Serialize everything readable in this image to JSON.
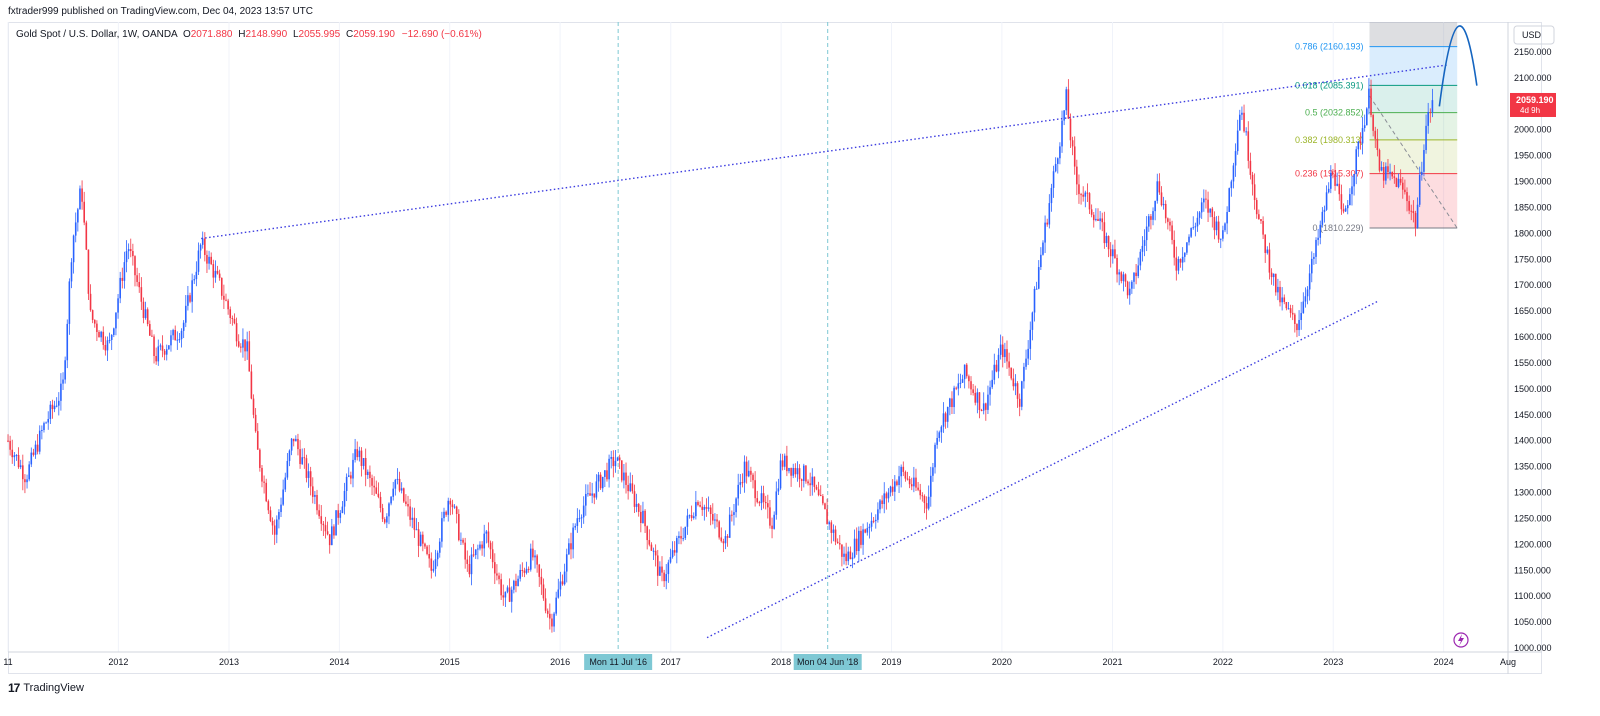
{
  "publisher": {
    "text": "fxtrader999 published on TradingView.com, Dec 04, 2023 13:57 UTC"
  },
  "legend": {
    "symbol": "Gold Spot / U.S. Dollar, 1W, OANDA",
    "open_label": "O",
    "open": "2071.880",
    "high_label": "H",
    "high": "2148.990",
    "low_label": "L",
    "low": "2055.995",
    "close_label": "C",
    "close": "2059.190",
    "change": "−12.690 (−0.61%)"
  },
  "currency": "USD",
  "price_badge": {
    "price": "2059.190",
    "countdown": "4d 9h",
    "value": 2059.19
  },
  "footer": {
    "brand": "TradingView"
  },
  "colors": {
    "up": "#2962ff",
    "down": "#f23645",
    "trendline": "#3d3de0",
    "grid": "#f0f3fa"
  },
  "chart_data": {
    "type": "candlestick",
    "x_range": [
      "2011-01",
      "2024-08"
    ],
    "y_range": [
      1000,
      2200
    ],
    "y_ticks": [
      "1000.000",
      "1050.000",
      "1100.000",
      "1150.000",
      "1200.000",
      "1250.000",
      "1300.000",
      "1350.000",
      "1400.000",
      "1450.000",
      "1500.000",
      "1550.000",
      "1600.000",
      "1650.000",
      "1700.000",
      "1750.000",
      "1800.000",
      "1850.000",
      "1900.000",
      "1950.000",
      "2000.000",
      "2050.000",
      "2100.000",
      "2150.000"
    ],
    "x_ticks": [
      {
        "label": "11",
        "date": "2011-01"
      },
      {
        "label": "2012",
        "date": "2012-01"
      },
      {
        "label": "2013",
        "date": "2013-01"
      },
      {
        "label": "2014",
        "date": "2014-01"
      },
      {
        "label": "2015",
        "date": "2015-01"
      },
      {
        "label": "2016",
        "date": "2016-01"
      },
      {
        "label": "2017",
        "date": "2017-01"
      },
      {
        "label": "2018",
        "date": "2018-01"
      },
      {
        "label": "2019",
        "date": "2019-01"
      },
      {
        "label": "2020",
        "date": "2020-01"
      },
      {
        "label": "2021",
        "date": "2021-01"
      },
      {
        "label": "2022",
        "date": "2022-01"
      },
      {
        "label": "2023",
        "date": "2023-01"
      },
      {
        "label": "2024",
        "date": "2024-01"
      },
      {
        "label": "Aug",
        "date": "2024-08"
      }
    ],
    "highlighted_dates": [
      {
        "label": "Mon 11 Jul '16",
        "date": "2016-07-11"
      },
      {
        "label": "Mon 04 Jun '18",
        "date": "2018-06-04"
      }
    ],
    "price_path": [
      [
        "2011-01",
        1400
      ],
      [
        "2011-03",
        1330
      ],
      [
        "2011-05",
        1430
      ],
      [
        "2011-07",
        1500
      ],
      [
        "2011-08",
        1780
      ],
      [
        "2011-09",
        1890
      ],
      [
        "2011-10",
        1640
      ],
      [
        "2011-12",
        1580
      ],
      [
        "2012-02",
        1780
      ],
      [
        "2012-05",
        1560
      ],
      [
        "2012-08",
        1620
      ],
      [
        "2012-10",
        1780
      ],
      [
        "2012-12",
        1700
      ],
      [
        "2013-02",
        1600
      ],
      [
        "2013-03",
        1580
      ],
      [
        "2013-04",
        1390
      ],
      [
        "2013-06",
        1220
      ],
      [
        "2013-08",
        1410
      ],
      [
        "2013-12",
        1210
      ],
      [
        "2014-03",
        1380
      ],
      [
        "2014-06",
        1250
      ],
      [
        "2014-07",
        1330
      ],
      [
        "2014-11",
        1150
      ],
      [
        "2015-01",
        1300
      ],
      [
        "2015-03",
        1150
      ],
      [
        "2015-05",
        1220
      ],
      [
        "2015-07",
        1090
      ],
      [
        "2015-10",
        1180
      ],
      [
        "2015-12",
        1050
      ],
      [
        "2016-03",
        1260
      ],
      [
        "2016-07",
        1365
      ],
      [
        "2016-10",
        1250
      ],
      [
        "2016-12",
        1130
      ],
      [
        "2017-04",
        1290
      ],
      [
        "2017-07",
        1210
      ],
      [
        "2017-09",
        1350
      ],
      [
        "2017-12",
        1240
      ],
      [
        "2018-01",
        1360
      ],
      [
        "2018-04",
        1330
      ],
      [
        "2018-08",
        1170
      ],
      [
        "2018-12",
        1280
      ],
      [
        "2019-02",
        1340
      ],
      [
        "2019-05",
        1280
      ],
      [
        "2019-06",
        1420
      ],
      [
        "2019-09",
        1530
      ],
      [
        "2019-11",
        1460
      ],
      [
        "2020-01",
        1580
      ],
      [
        "2020-03",
        1480
      ],
      [
        "2020-05",
        1730
      ],
      [
        "2020-08",
        2060
      ],
      [
        "2020-09",
        1900
      ],
      [
        "2020-11",
        1840
      ],
      [
        "2021-03",
        1680
      ],
      [
        "2021-06",
        1900
      ],
      [
        "2021-08",
        1740
      ],
      [
        "2021-11",
        1860
      ],
      [
        "2022-01",
        1790
      ],
      [
        "2022-03",
        2050
      ],
      [
        "2022-05",
        1820
      ],
      [
        "2022-07",
        1680
      ],
      [
        "2022-09",
        1620
      ],
      [
        "2022-11",
        1760
      ],
      [
        "2023-01",
        1930
      ],
      [
        "2023-02",
        1820
      ],
      [
        "2023-05",
        2070
      ],
      [
        "2023-06",
        1920
      ],
      [
        "2023-08",
        1900
      ],
      [
        "2023-09",
        1870
      ],
      [
        "2023-10",
        1820
      ],
      [
        "2023-11",
        2000
      ],
      [
        "2023-12",
        2070
      ]
    ],
    "trendlines": [
      {
        "name": "upper",
        "from": [
          "2012-10-01",
          1790
        ],
        "to": [
          "2024-01-15",
          2125
        ]
      },
      {
        "name": "lower",
        "from": [
          "2017-05-01",
          1020
        ],
        "to": [
          "2023-06-01",
          1670
        ]
      }
    ],
    "fibonacci": {
      "from_date": "2023-05-01",
      "to_date": "2024-02-15",
      "levels": [
        {
          "ratio": "0.786",
          "label": "0.786 (2160.193)",
          "price": 2160.193,
          "color": "#2196f3"
        },
        {
          "ratio": "0.618",
          "label": "0.618 (2085.391)",
          "price": 2085.391,
          "color": "#089981"
        },
        {
          "ratio": "0.5",
          "label": "0.5 (2032.852)",
          "price": 2032.852,
          "color": "#4caf50"
        },
        {
          "ratio": "0.382",
          "label": "0.382 (1980.313)",
          "price": 1980.313,
          "color": "#9cb529"
        },
        {
          "ratio": "0.236",
          "label": "0.236 (1915.307)",
          "price": 1915.307,
          "color": "#f23645"
        },
        {
          "ratio": "0",
          "label": "0 (1810.229)",
          "price": 1810.229,
          "color": "#787b86"
        }
      ]
    },
    "projection_arc": {
      "points": [
        [
          "2023-12-18",
          2045
        ],
        [
          "2024-02-20",
          2160
        ],
        [
          "2024-04-20",
          2085
        ]
      ]
    }
  }
}
